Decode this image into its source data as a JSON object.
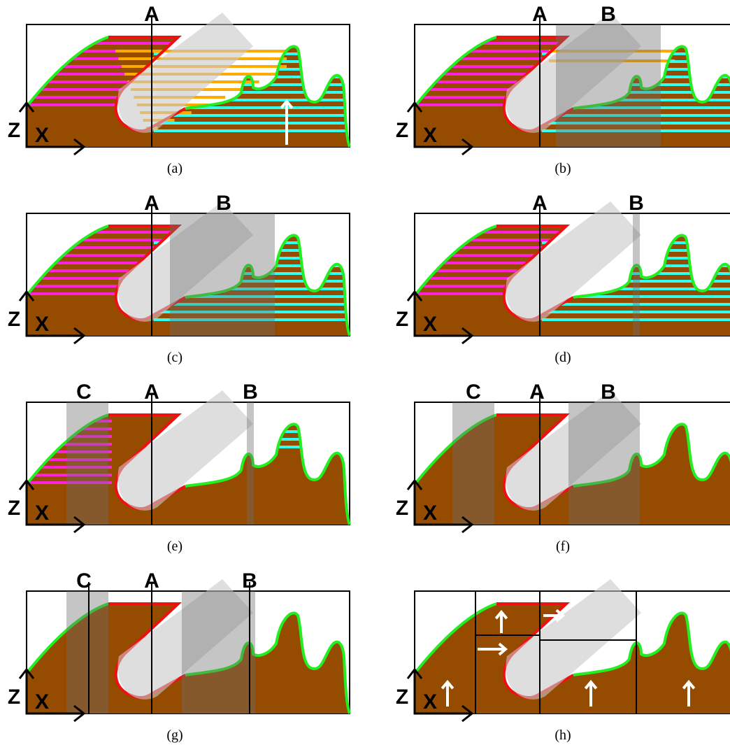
{
  "panels": [
    {
      "caption": "(a)",
      "markers": [
        "A"
      ],
      "z": "Z",
      "x": "X"
    },
    {
      "caption": "(b)",
      "markers": [
        "A",
        "B"
      ],
      "z": "Z",
      "x": "X"
    },
    {
      "caption": "(c)",
      "markers": [
        "A",
        "B"
      ],
      "z": "Z",
      "x": "X"
    },
    {
      "caption": "(d)",
      "markers": [
        "A",
        "B"
      ],
      "z": "Z",
      "x": "X"
    },
    {
      "caption": "(e)",
      "markers": [
        "C",
        "A",
        "B"
      ],
      "z": "Z",
      "x": "X"
    },
    {
      "caption": "(f)",
      "markers": [
        "C",
        "A",
        "B"
      ],
      "z": "Z",
      "x": "X"
    },
    {
      "caption": "(g)",
      "markers": [
        "C",
        "A",
        "B"
      ],
      "z": "Z",
      "x": "X"
    },
    {
      "caption": "(h)",
      "markers": [],
      "z": "Z",
      "x": "X"
    }
  ]
}
